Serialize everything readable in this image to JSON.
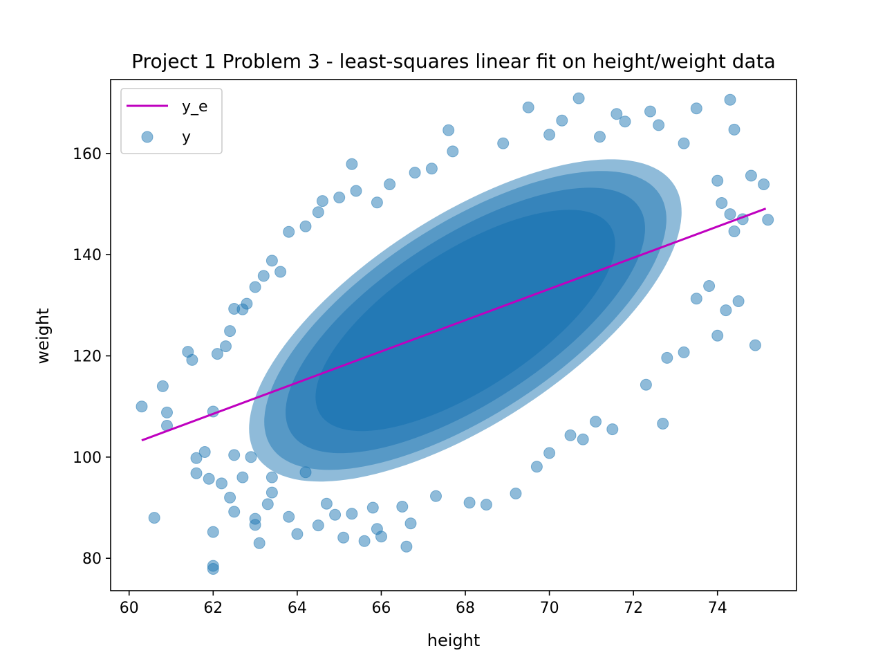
{
  "chart_data": {
    "type": "scatter",
    "title": "Project 1 Problem 3 - least-squares linear fit on height/weight data",
    "xlabel": "height",
    "ylabel": "weight",
    "xlim": [
      59.56,
      75.88
    ],
    "ylim": [
      73.6,
      174.6
    ],
    "x_ticks": [
      60,
      62,
      64,
      66,
      68,
      70,
      72,
      74
    ],
    "y_ticks": [
      80,
      100,
      120,
      140,
      160
    ],
    "x_tick_labels": [
      "60",
      "62",
      "64",
      "66",
      "68",
      "70",
      "72",
      "74"
    ],
    "y_tick_labels": [
      "80",
      "100",
      "120",
      "140",
      "160"
    ],
    "grid": false,
    "legend_position": "upper-left",
    "series": [
      {
        "name": "y_e",
        "kind": "line",
        "color": "#bf00bf",
        "x": [
          60.3,
          75.15
        ],
        "y": [
          103.3,
          149.1
        ]
      },
      {
        "name": "y",
        "kind": "scatter",
        "color": "#1f77b4",
        "alpha": 0.5,
        "description_of_density": "dense elliptical cloud centered near height 68, weight 127",
        "outlier_points": [
          [
            60.3,
            110.0
          ],
          [
            60.6,
            88.0
          ],
          [
            60.8,
            114.0
          ],
          [
            60.9,
            108.8
          ],
          [
            60.9,
            106.2
          ],
          [
            61.4,
            120.8
          ],
          [
            61.5,
            119.2
          ],
          [
            61.6,
            99.8
          ],
          [
            61.6,
            96.8
          ],
          [
            61.8,
            101.0
          ],
          [
            61.9,
            95.7
          ],
          [
            62.0,
            85.2
          ],
          [
            62.0,
            78.5
          ],
          [
            62.0,
            77.9
          ],
          [
            62.0,
            109.0
          ],
          [
            62.1,
            120.4
          ],
          [
            62.2,
            94.8
          ],
          [
            62.4,
            92.0
          ],
          [
            62.5,
            89.2
          ],
          [
            62.5,
            100.4
          ],
          [
            62.7,
            96.0
          ],
          [
            62.9,
            100.0
          ],
          [
            63.0,
            87.8
          ],
          [
            63.0,
            86.6
          ],
          [
            63.1,
            83.0
          ],
          [
            63.3,
            90.7
          ],
          [
            63.4,
            96.0
          ],
          [
            63.4,
            93.0
          ],
          [
            63.8,
            88.2
          ],
          [
            64.0,
            84.8
          ],
          [
            64.2,
            97.0
          ],
          [
            64.5,
            86.5
          ],
          [
            64.7,
            90.8
          ],
          [
            64.9,
            88.6
          ],
          [
            65.1,
            84.1
          ],
          [
            65.3,
            88.8
          ],
          [
            65.6,
            83.4
          ],
          [
            65.8,
            90.0
          ],
          [
            65.9,
            85.8
          ],
          [
            66.0,
            84.3
          ],
          [
            66.5,
            90.2
          ],
          [
            66.6,
            82.3
          ],
          [
            66.7,
            86.9
          ],
          [
            67.3,
            92.3
          ],
          [
            68.1,
            91.0
          ],
          [
            68.5,
            90.6
          ],
          [
            69.2,
            92.8
          ],
          [
            69.7,
            98.1
          ],
          [
            70.0,
            100.8
          ],
          [
            70.5,
            104.3
          ],
          [
            70.8,
            103.5
          ],
          [
            71.1,
            107.0
          ],
          [
            71.5,
            105.5
          ],
          [
            72.3,
            114.3
          ],
          [
            72.7,
            106.6
          ],
          [
            72.8,
            119.6
          ],
          [
            73.2,
            120.7
          ],
          [
            73.5,
            131.3
          ],
          [
            73.8,
            133.8
          ],
          [
            74.0,
            124.0
          ],
          [
            74.2,
            129.0
          ],
          [
            74.5,
            130.8
          ],
          [
            74.8,
            155.6
          ],
          [
            74.9,
            122.1
          ],
          [
            75.1,
            153.9
          ],
          [
            75.2,
            146.9
          ],
          [
            74.6,
            147.0
          ],
          [
            74.4,
            144.6
          ],
          [
            74.3,
            148.0
          ],
          [
            74.1,
            150.2
          ],
          [
            74.0,
            154.6
          ],
          [
            74.4,
            164.7
          ],
          [
            74.3,
            170.6
          ],
          [
            73.5,
            168.9
          ],
          [
            73.2,
            162.0
          ],
          [
            72.6,
            165.6
          ],
          [
            72.4,
            168.3
          ],
          [
            71.8,
            166.3
          ],
          [
            71.6,
            167.8
          ],
          [
            71.2,
            163.3
          ],
          [
            70.7,
            170.9
          ],
          [
            70.3,
            166.5
          ],
          [
            70.0,
            163.7
          ],
          [
            69.5,
            169.1
          ],
          [
            68.9,
            162.0
          ],
          [
            67.6,
            164.6
          ],
          [
            67.7,
            160.4
          ],
          [
            67.2,
            157.0
          ],
          [
            66.8,
            156.2
          ],
          [
            66.2,
            153.9
          ],
          [
            65.9,
            150.3
          ],
          [
            65.3,
            157.9
          ],
          [
            65.4,
            152.6
          ],
          [
            65.0,
            151.3
          ],
          [
            64.6,
            150.6
          ],
          [
            64.5,
            148.4
          ],
          [
            64.2,
            145.6
          ],
          [
            63.8,
            144.5
          ],
          [
            63.6,
            136.6
          ],
          [
            63.4,
            138.8
          ],
          [
            63.2,
            135.8
          ],
          [
            63.0,
            133.6
          ],
          [
            62.8,
            130.3
          ],
          [
            62.7,
            129.2
          ],
          [
            62.5,
            129.3
          ],
          [
            62.4,
            124.9
          ],
          [
            62.3,
            121.9
          ]
        ]
      }
    ]
  }
}
